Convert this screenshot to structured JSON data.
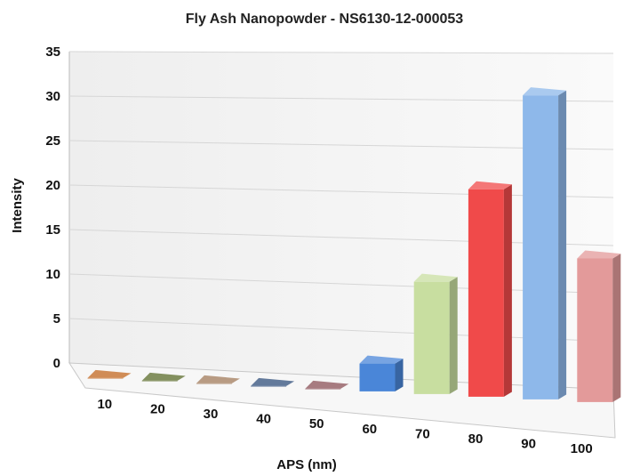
{
  "chart_data": {
    "type": "bar",
    "title": "Fly Ash Nanopowder - NS6130-12-000053",
    "xlabel": "APS (nm)",
    "ylabel": "Intensity",
    "categories": [
      "10",
      "20",
      "30",
      "40",
      "50",
      "60",
      "70",
      "80",
      "90",
      "100"
    ],
    "values": [
      0,
      0,
      0,
      0,
      0,
      3,
      12,
      22,
      32,
      15
    ],
    "ylim": [
      0,
      35
    ],
    "yticks": [
      "0",
      "5",
      "10",
      "15",
      "20",
      "25",
      "30",
      "35"
    ],
    "grid": true,
    "style": "3d",
    "legend": "none",
    "colors": [
      "#c0651e",
      "#5a6b2a",
      "#a07a5a",
      "#2f4d7a",
      "#8a4f56",
      "#4a86d8",
      "#c8dea0",
      "#f04a4a",
      "#8eb8ea",
      "#e39a9a"
    ]
  }
}
